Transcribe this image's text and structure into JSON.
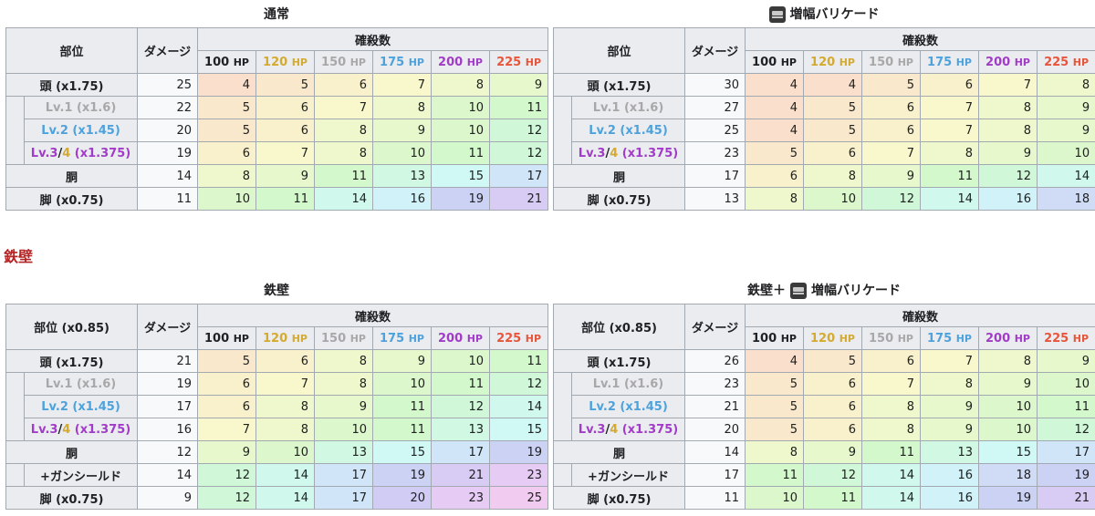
{
  "hp_headers": [
    {
      "value": "100",
      "unit": "HP",
      "cls": "c100"
    },
    {
      "value": "120",
      "unit": "HP",
      "cls": "c120"
    },
    {
      "value": "150",
      "unit": "HP",
      "cls": "c150"
    },
    {
      "value": "175",
      "unit": "HP",
      "cls": "c175"
    },
    {
      "value": "200",
      "unit": "HP",
      "cls": "c200"
    },
    {
      "value": "225",
      "unit": "HP",
      "cls": "c225"
    }
  ],
  "labels": {
    "col_part": "部位",
    "col_part_085": "部位 (x0.85)",
    "col_damage": "ダメージ",
    "col_kills": "確殺数",
    "head": "頭 (x1.75)",
    "lv1": "Lv.1 (x1.6)",
    "lv2": "Lv.2 (x1.45)",
    "lv3_a": "Lv.3",
    "lv3_slash": "/",
    "lv3_b": "4",
    "lv3_c": " (x1.375)",
    "body": "胴",
    "gunshield": "+ガンシールド",
    "legs": "脚 (x0.75)"
  },
  "section_heading": "鉄壁",
  "tables": [
    {
      "caption": "通常",
      "icon": false,
      "caption_prefix": "",
      "rows": [
        {
          "key": "head",
          "dmg": 25,
          "vals": [
            4,
            5,
            6,
            7,
            8,
            9
          ]
        },
        {
          "key": "lv1",
          "dmg": 22,
          "vals": [
            5,
            6,
            7,
            8,
            10,
            11
          ]
        },
        {
          "key": "lv2",
          "dmg": 20,
          "vals": [
            5,
            6,
            8,
            9,
            10,
            12
          ]
        },
        {
          "key": "lv3",
          "dmg": 19,
          "vals": [
            6,
            7,
            8,
            10,
            11,
            12
          ]
        },
        {
          "key": "body",
          "dmg": 14,
          "vals": [
            8,
            9,
            11,
            13,
            15,
            17
          ]
        },
        {
          "key": "legs",
          "dmg": 11,
          "vals": [
            10,
            11,
            14,
            16,
            19,
            21
          ]
        }
      ]
    },
    {
      "caption": "増幅バリケード",
      "icon": true,
      "caption_prefix": "",
      "rows": [
        {
          "key": "head",
          "dmg": 30,
          "vals": [
            4,
            4,
            5,
            6,
            7,
            8
          ]
        },
        {
          "key": "lv1",
          "dmg": 27,
          "vals": [
            4,
            5,
            6,
            7,
            8,
            9
          ]
        },
        {
          "key": "lv2",
          "dmg": 25,
          "vals": [
            4,
            5,
            6,
            7,
            8,
            9
          ]
        },
        {
          "key": "lv3",
          "dmg": 23,
          "vals": [
            5,
            6,
            7,
            8,
            9,
            10
          ]
        },
        {
          "key": "body",
          "dmg": 17,
          "vals": [
            6,
            8,
            9,
            11,
            12,
            14
          ]
        },
        {
          "key": "legs",
          "dmg": 13,
          "vals": [
            8,
            10,
            12,
            14,
            16,
            18
          ]
        }
      ]
    },
    {
      "caption": "鉄壁",
      "icon": false,
      "caption_prefix": "",
      "rows": [
        {
          "key": "head",
          "dmg": 21,
          "vals": [
            5,
            6,
            8,
            9,
            10,
            11
          ]
        },
        {
          "key": "lv1",
          "dmg": 19,
          "vals": [
            6,
            7,
            8,
            10,
            11,
            12
          ]
        },
        {
          "key": "lv2",
          "dmg": 17,
          "vals": [
            6,
            8,
            9,
            11,
            12,
            14
          ]
        },
        {
          "key": "lv3",
          "dmg": 16,
          "vals": [
            7,
            8,
            10,
            11,
            13,
            15
          ]
        },
        {
          "key": "body",
          "dmg": 12,
          "vals": [
            9,
            10,
            13,
            15,
            17,
            19
          ]
        },
        {
          "key": "gunshield",
          "dmg": 14,
          "vals": [
            12,
            14,
            17,
            19,
            21,
            23
          ]
        },
        {
          "key": "legs",
          "dmg": 9,
          "vals": [
            12,
            14,
            17,
            20,
            23,
            25
          ]
        }
      ]
    },
    {
      "caption": "増幅バリケード",
      "icon": true,
      "caption_prefix": "鉄壁＋",
      "rows": [
        {
          "key": "head",
          "dmg": 26,
          "vals": [
            4,
            5,
            6,
            7,
            8,
            9
          ]
        },
        {
          "key": "lv1",
          "dmg": 23,
          "vals": [
            5,
            6,
            7,
            8,
            9,
            10
          ]
        },
        {
          "key": "lv2",
          "dmg": 21,
          "vals": [
            5,
            6,
            8,
            9,
            10,
            11
          ]
        },
        {
          "key": "lv3",
          "dmg": 20,
          "vals": [
            5,
            6,
            8,
            9,
            10,
            12
          ]
        },
        {
          "key": "body",
          "dmg": 14,
          "vals": [
            8,
            9,
            11,
            13,
            15,
            17
          ]
        },
        {
          "key": "gunshield",
          "dmg": 17,
          "vals": [
            11,
            12,
            14,
            16,
            18,
            19
          ]
        },
        {
          "key": "legs",
          "dmg": 11,
          "vals": [
            10,
            11,
            14,
            16,
            19,
            21
          ]
        }
      ]
    }
  ],
  "color_scale": {
    "4": "#f9dfcc",
    "5": "#f9e8cc",
    "6": "#f9f1cc",
    "7": "#f8f8cc",
    "8": "#eef8cc",
    "9": "#e6f8cc",
    "10": "#dcf7cc",
    "11": "#d3f8cc",
    "12": "#d0f8d8",
    "13": "#d0f8e3",
    "14": "#d0f8ec",
    "15": "#d0f8f4",
    "16": "#d0f2f8",
    "17": "#d0e6f8",
    "18": "#d0dcf6",
    "19": "#ccd2f4",
    "20": "#d0ccf4",
    "21": "#d8ccf4",
    "23": "#e6ccf4",
    "25": "#f2ccf0"
  }
}
